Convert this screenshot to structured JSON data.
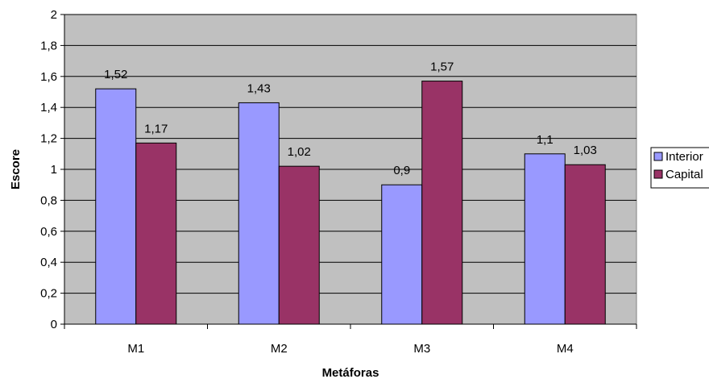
{
  "chart_data": {
    "type": "bar",
    "categories": [
      "M1",
      "M2",
      "M3",
      "M4"
    ],
    "series": [
      {
        "name": "Interior",
        "values": [
          1.52,
          1.43,
          0.9,
          1.1
        ],
        "labels": [
          "1,52",
          "1,43",
          "0,9",
          "1,1"
        ],
        "color": "#9999ff"
      },
      {
        "name": "Capital",
        "values": [
          1.17,
          1.02,
          1.57,
          1.03
        ],
        "labels": [
          "1,17",
          "1,02",
          "1,57",
          "1,03"
        ],
        "color": "#993366"
      }
    ],
    "title": "",
    "xlabel": "Metáforas",
    "ylabel": "Escore",
    "ylim": [
      0,
      2
    ],
    "yticks": [
      0,
      0.2,
      0.4,
      0.6,
      0.8,
      1,
      1.2,
      1.4,
      1.6,
      1.8,
      2
    ],
    "ytick_labels": [
      "0",
      "0,2",
      "0,4",
      "0,6",
      "0,8",
      "1",
      "1,2",
      "1,4",
      "1,6",
      "1,8",
      "2"
    ],
    "grid": true,
    "legend_position": "right",
    "plot_background": "#c0c0c0"
  }
}
